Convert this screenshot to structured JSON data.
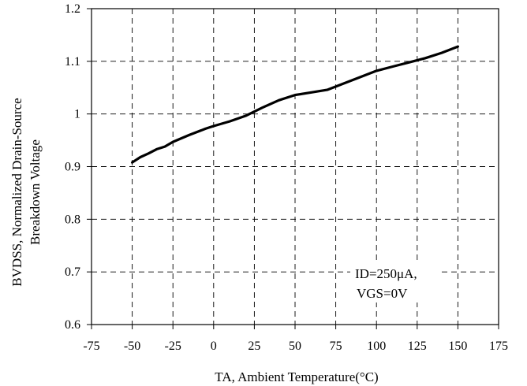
{
  "chart_data": {
    "type": "line",
    "xlabel": "TA, Ambient Temperature(°C)",
    "ylabel_line1": "BVDSS, Normalized Drain-Source",
    "ylabel_line2": "Breakdown Voltage",
    "xlim": [
      -75,
      175
    ],
    "ylim": [
      0.6,
      1.2
    ],
    "x_ticks": [
      -75,
      -50,
      -25,
      0,
      25,
      50,
      75,
      100,
      125,
      150,
      175
    ],
    "y_ticks": [
      0.6,
      0.7,
      0.8,
      0.9,
      1,
      1.1,
      1.2
    ],
    "y_tick_labels": [
      "0.6",
      "0.7",
      "0.8",
      "0.9",
      "1",
      "1.1",
      "1.2"
    ],
    "grid": true,
    "grid_style": "dashed",
    "series": [
      {
        "x": [
          -50,
          -45,
          -40,
          -35,
          -30,
          -25,
          -15,
          -5,
          0,
          10,
          20,
          30,
          40,
          50,
          60,
          70,
          80,
          90,
          100,
          110,
          120,
          130,
          140,
          150
        ],
        "y": [
          0.908,
          0.918,
          0.925,
          0.933,
          0.938,
          0.947,
          0.96,
          0.972,
          0.977,
          0.986,
          0.997,
          1.012,
          1.026,
          1.036,
          1.041,
          1.046,
          1.058,
          1.07,
          1.082,
          1.09,
          1.098,
          1.106,
          1.116,
          1.128
        ],
        "color": "#000000"
      }
    ],
    "annotation_line1": "ID=250μA,",
    "annotation_line2": "VGS=0V"
  }
}
